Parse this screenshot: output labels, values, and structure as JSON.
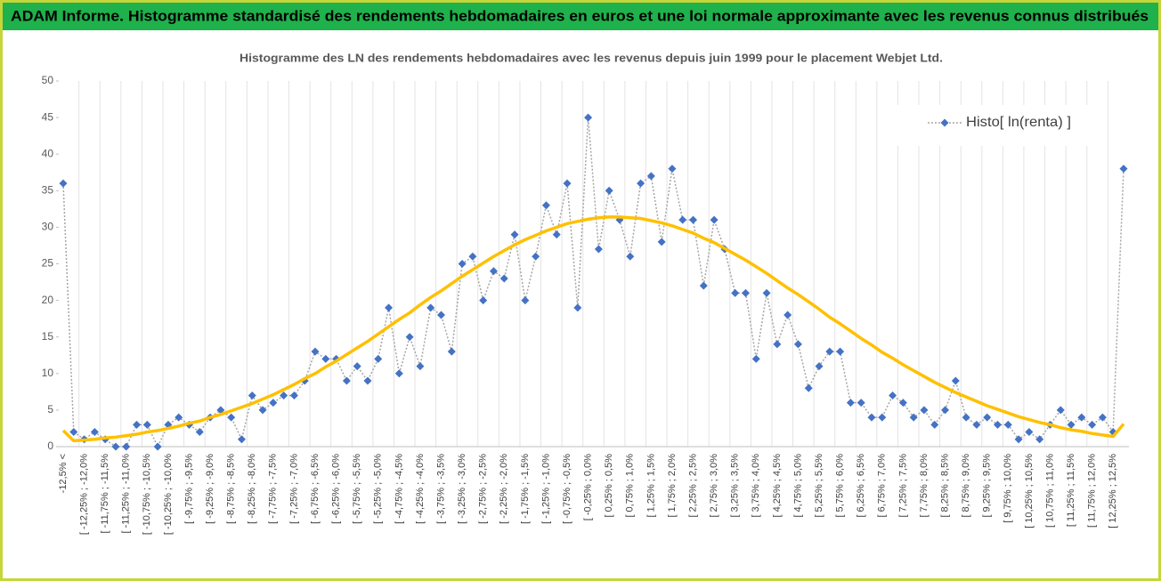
{
  "header": {
    "title": "ADAM Informe. Histogramme standardisé des rendements hebdomadaires en euros et une loi normale approximante avec les revenus connus distribués"
  },
  "chart_data": {
    "type": "line",
    "title": "Histogramme  des LN des rendements hebdomadaires avec les revenus depuis juin 1999 pour le placement Webjet Ltd.",
    "categories": [
      "-12,5% <",
      null,
      "[ -12,25% ; -12,0%",
      null,
      "[ -11,75% ; -11,5%",
      null,
      "[ -11,25% ; -11,0%",
      null,
      "[ -10,75% ; -10,5%",
      null,
      "[ -10,25% ; -10,0%",
      null,
      "[ -9,75% ; -9,5%",
      null,
      "[ -9,25% ; -9,0%",
      null,
      "[ -8,75% ; -8,5%",
      null,
      "[ -8,25% ; -8,0%",
      null,
      "[ -7,75% ; -7,5%",
      null,
      "[ -7,25% ; -7,0%",
      null,
      "[ -6,75% ; -6,5%",
      null,
      "[ -6,25% ; -6,0%",
      null,
      "[ -5,75% ; -5,5%",
      null,
      "[ -5,25% ; -5,0%",
      null,
      "[ -4,75% ; -4,5%",
      null,
      "[ -4,25% ; -4,0%",
      null,
      "[ -3,75% ; -3,5%",
      null,
      "[ -3,25% ; -3,0%",
      null,
      "[ -2,75% ; -2,5%",
      null,
      "[ -2,25% ; -2,0%",
      null,
      "[ -1,75% ; -1,5%",
      null,
      "[ -1,25% ; -1,0%",
      null,
      "[ -0,75% ; -0,5%",
      null,
      "[ -0,25% ; 0,0%",
      null,
      "[ 0,25% ; 0,5%",
      null,
      "[ 0,75% ; 1,0%",
      null,
      "[ 1,25% ; 1,5%",
      null,
      "[ 1,75% ; 2,0%",
      null,
      "[ 2,25% ; 2,5%",
      null,
      "[ 2,75% ; 3,0%",
      null,
      "[ 3,25% ; 3,5%",
      null,
      "[ 3,75% ; 4,0%",
      null,
      "[ 4,25% ; 4,5%",
      null,
      "[ 4,75% ; 5,0%",
      null,
      "[ 5,25% ; 5,5%",
      null,
      "[ 5,75% ; 6,0%",
      null,
      "[ 6,25% ; 6,5%",
      null,
      "[ 6,75% ; 7,0%",
      null,
      "[ 7,25% ; 7,5%",
      null,
      "[ 7,75% ; 8,0%",
      null,
      "[ 8,25% ; 8,5%",
      null,
      "[ 8,75% ; 9,0%",
      null,
      "[ 9,25% ; 9,5%",
      null,
      "[ 9,75% ; 10,0%",
      null,
      "[ 10,25% ; 10,5%",
      null,
      "[ 10,75% ; 11,0%",
      null,
      "[ 11,25% ; 11,5%",
      null,
      "[ 11,75% ; 12,0%",
      null,
      "[ 12,25% ; 12,5%",
      null
    ],
    "series": [
      {
        "name": "Histo[ ln(renta) ]",
        "color": "#4472c4",
        "values": [
          36,
          2,
          1,
          2,
          1,
          0,
          0,
          3,
          3,
          0,
          3,
          4,
          3,
          2,
          4,
          5,
          4,
          1,
          7,
          5,
          6,
          7,
          7,
          9,
          13,
          12,
          12,
          9,
          11,
          9,
          12,
          19,
          10,
          15,
          11,
          19,
          18,
          13,
          25,
          26,
          20,
          24,
          23,
          29,
          20,
          26,
          33,
          29,
          36,
          19,
          45,
          27,
          35,
          31,
          26,
          36,
          37,
          28,
          38,
          31,
          31,
          22,
          31,
          27,
          21,
          21,
          12,
          21,
          14,
          18,
          14,
          8,
          11,
          13,
          13,
          6,
          6,
          4,
          4,
          7,
          6,
          4,
          5,
          3,
          5,
          9,
          4,
          3,
          4,
          3,
          3,
          1,
          2,
          1,
          3,
          5,
          3,
          4,
          3,
          4,
          2,
          38
        ]
      },
      {
        "color": "#ffc000",
        "values": [
          2.2,
          0.8,
          0.9,
          1.0,
          1.2,
          1.3,
          1.5,
          1.7,
          2.0,
          2.2,
          2.5,
          2.8,
          3.2,
          3.5,
          4.0,
          4.4,
          4.9,
          5.4,
          5.9,
          6.5,
          7.1,
          7.8,
          8.5,
          9.3,
          10.0,
          10.9,
          11.7,
          12.6,
          13.5,
          14.4,
          15.4,
          16.4,
          17.4,
          18.3,
          19.4,
          20.4,
          21.3,
          22.3,
          23.3,
          24.2,
          25.1,
          26.0,
          26.8,
          27.6,
          28.3,
          28.9,
          29.5,
          30.0,
          30.5,
          30.8,
          31.1,
          31.3,
          31.4,
          31.4,
          31.3,
          31.2,
          30.9,
          30.6,
          30.2,
          29.7,
          29.2,
          28.5,
          27.9,
          27.1,
          26.3,
          25.5,
          24.6,
          23.7,
          22.7,
          21.7,
          20.8,
          19.8,
          18.8,
          17.7,
          16.8,
          15.8,
          14.8,
          13.9,
          12.9,
          12.1,
          11.2,
          10.4,
          9.6,
          8.8,
          8.1,
          7.4,
          6.8,
          6.2,
          5.6,
          5.1,
          4.6,
          4.1,
          3.7,
          3.3,
          3.0,
          2.6,
          2.3,
          2.1,
          1.8,
          1.6,
          1.4,
          3.1
        ]
      }
    ],
    "ylim": [
      0,
      50
    ],
    "yticks": [
      0,
      5,
      10,
      15,
      20,
      25,
      30,
      35,
      40,
      45,
      50
    ],
    "grid": true,
    "legend": "upper right"
  }
}
